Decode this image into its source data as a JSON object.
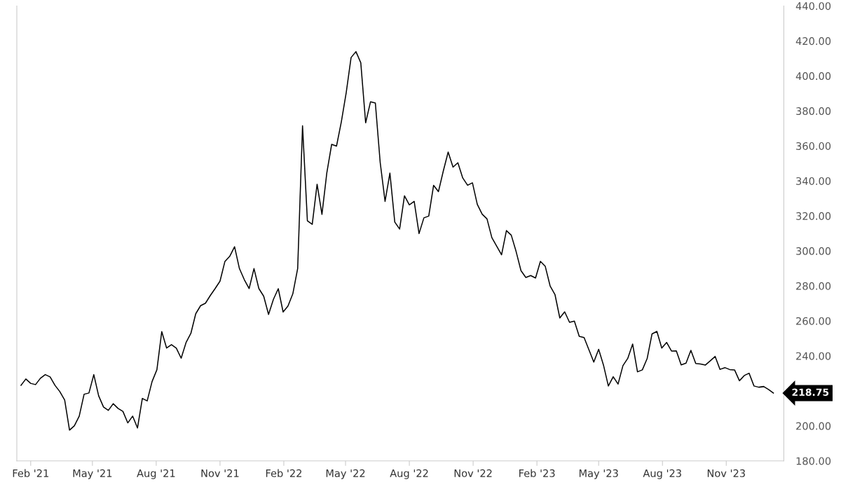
{
  "chart_data": {
    "type": "line",
    "x": [
      "2021-01-18",
      "2021-01-25",
      "2021-02-01",
      "2021-02-08",
      "2021-02-15",
      "2021-02-22",
      "2021-03-01",
      "2021-03-08",
      "2021-03-15",
      "2021-03-22",
      "2021-03-29",
      "2021-04-05",
      "2021-04-12",
      "2021-04-19",
      "2021-04-26",
      "2021-05-03",
      "2021-05-10",
      "2021-05-17",
      "2021-05-24",
      "2021-05-31",
      "2021-06-07",
      "2021-06-14",
      "2021-06-21",
      "2021-06-28",
      "2021-07-05",
      "2021-07-12",
      "2021-07-19",
      "2021-07-26",
      "2021-08-02",
      "2021-08-09",
      "2021-08-16",
      "2021-08-23",
      "2021-08-30",
      "2021-09-06",
      "2021-09-13",
      "2021-09-20",
      "2021-09-27",
      "2021-10-04",
      "2021-10-11",
      "2021-10-18",
      "2021-10-25",
      "2021-11-01",
      "2021-11-08",
      "2021-11-15",
      "2021-11-22",
      "2021-11-29",
      "2021-12-06",
      "2021-12-13",
      "2021-12-20",
      "2021-12-27",
      "2022-01-03",
      "2022-01-10",
      "2022-01-17",
      "2022-01-24",
      "2022-01-31",
      "2022-02-07",
      "2022-02-14",
      "2022-02-21",
      "2022-02-28",
      "2022-03-07",
      "2022-03-14",
      "2022-03-21",
      "2022-03-28",
      "2022-04-04",
      "2022-04-11",
      "2022-04-18",
      "2022-04-25",
      "2022-05-02",
      "2022-05-09",
      "2022-05-16",
      "2022-05-23",
      "2022-05-30",
      "2022-06-06",
      "2022-06-13",
      "2022-06-20",
      "2022-06-27",
      "2022-07-04",
      "2022-07-11",
      "2022-07-18",
      "2022-07-25",
      "2022-08-01",
      "2022-08-08",
      "2022-08-15",
      "2022-08-22",
      "2022-08-29",
      "2022-09-05",
      "2022-09-12",
      "2022-09-19",
      "2022-09-26",
      "2022-10-03",
      "2022-10-10",
      "2022-10-17",
      "2022-10-24",
      "2022-10-31",
      "2022-11-07",
      "2022-11-14",
      "2022-11-21",
      "2022-11-28",
      "2022-12-05",
      "2022-12-12",
      "2022-12-19",
      "2022-12-26",
      "2023-01-02",
      "2023-01-09",
      "2023-01-16",
      "2023-01-23",
      "2023-01-30",
      "2023-02-06",
      "2023-02-13",
      "2023-02-20",
      "2023-02-27",
      "2023-03-06",
      "2023-03-13",
      "2023-03-20",
      "2023-03-27",
      "2023-04-03",
      "2023-04-10",
      "2023-04-17",
      "2023-04-24",
      "2023-05-01",
      "2023-05-08",
      "2023-05-15",
      "2023-05-22",
      "2023-05-29",
      "2023-06-05",
      "2023-06-12",
      "2023-06-19",
      "2023-06-26",
      "2023-07-03",
      "2023-07-10",
      "2023-07-17",
      "2023-07-24",
      "2023-07-31",
      "2023-08-07",
      "2023-08-14",
      "2023-08-21",
      "2023-08-28",
      "2023-09-04",
      "2023-09-11",
      "2023-09-18",
      "2023-09-25",
      "2023-10-02",
      "2023-10-09",
      "2023-10-16",
      "2023-10-23",
      "2023-10-30",
      "2023-11-06",
      "2023-11-13",
      "2023-11-20",
      "2023-11-27",
      "2023-12-04",
      "2023-12-11",
      "2023-12-18",
      "2023-12-25",
      "2024-01-01",
      "2024-01-08"
    ],
    "series": [
      {
        "color": "#000000",
        "values": [
          223.2,
          226.8,
          224.3,
          223.6,
          227.2,
          229.3,
          228,
          223.2,
          219.6,
          214.8,
          197.6,
          200.1,
          205.6,
          218.1,
          218.8,
          229.3,
          217.2,
          210.8,
          208.9,
          212.7,
          210,
          208.3,
          201.7,
          205.6,
          198.8,
          215.7,
          214.3,
          225.3,
          232.1,
          253.9,
          244.5,
          246.4,
          244.4,
          238.7,
          247.6,
          252.9,
          264.1,
          268.7,
          270.1,
          274.5,
          278.5,
          282.7,
          293.9,
          296.9,
          302.4,
          289.9,
          283.6,
          278.5,
          289.9,
          278.5,
          274.1,
          263.7,
          272.3,
          278.4,
          265.1,
          268.5,
          275.5,
          290,
          371.5,
          317.2,
          315.2,
          338.1,
          320.9,
          344.5,
          360.9,
          359.9,
          373.9,
          390.5,
          410.5,
          413.9,
          407.5,
          373.2,
          385.2,
          384.5,
          350.5,
          328.3,
          344.5,
          316.5,
          312.5,
          331.5,
          326.3,
          328.3,
          309.9,
          318.9,
          319.9,
          337.5,
          333.9,
          345.7,
          356.5,
          347.9,
          350.4,
          341.7,
          337.5,
          338.9,
          326.6,
          321,
          318.3,
          307.6,
          302.7,
          297.8,
          311.6,
          309,
          299.6,
          288.7,
          284.8,
          285.9,
          284.5,
          294,
          291.2,
          280,
          275.1,
          261.7,
          265.2,
          259.2,
          259.9,
          251.2,
          250.5,
          243.5,
          236.5,
          243.8,
          234.7,
          222.8,
          228.1,
          223.9,
          234.4,
          238.6,
          246.8,
          230.9,
          232,
          238.6,
          252.6,
          254,
          244.5,
          247.7,
          242.8,
          242.9,
          234.9,
          235.9,
          243.2,
          235.7,
          235.4,
          234.8,
          237.2,
          239.7,
          232.3,
          233.3,
          232.2,
          232,
          225.8,
          228.8,
          230.1,
          222.8,
          222.1,
          222.5,
          220.8,
          218.75
        ]
      }
    ],
    "xlim": [
      "2021-01-12",
      "2024-01-23"
    ],
    "xticks": [
      {
        "value": "2021-02-01",
        "label": "Feb '21"
      },
      {
        "value": "2021-05-01",
        "label": "May '21"
      },
      {
        "value": "2021-08-01",
        "label": "Aug '21"
      },
      {
        "value": "2021-11-01",
        "label": "Nov '21"
      },
      {
        "value": "2022-02-01",
        "label": "Feb '22"
      },
      {
        "value": "2022-05-01",
        "label": "May '22"
      },
      {
        "value": "2022-08-01",
        "label": "Aug '22"
      },
      {
        "value": "2022-11-01",
        "label": "Nov '22"
      },
      {
        "value": "2023-02-01",
        "label": "Feb '23"
      },
      {
        "value": "2023-05-01",
        "label": "May '23"
      },
      {
        "value": "2023-08-01",
        "label": "Aug '23"
      },
      {
        "value": "2023-11-01",
        "label": "Nov '23"
      }
    ],
    "ylim": [
      180,
      440
    ],
    "yticks": [
      {
        "value": 180,
        "label": "180.00"
      },
      {
        "value": 200,
        "label": "200.00"
      },
      {
        "value": 240,
        "label": "240.00"
      },
      {
        "value": 260,
        "label": "260.00"
      },
      {
        "value": 280,
        "label": "280.00"
      },
      {
        "value": 300,
        "label": "300.00"
      },
      {
        "value": 320,
        "label": "320.00"
      },
      {
        "value": 340,
        "label": "340.00"
      },
      {
        "value": 360,
        "label": "360.00"
      },
      {
        "value": 380,
        "label": "380.00"
      },
      {
        "value": 400,
        "label": "400.00"
      },
      {
        "value": 420,
        "label": "420.00"
      },
      {
        "value": 440,
        "label": "440.00"
      }
    ],
    "annotations": [
      "218.75"
    ],
    "grid": false,
    "marker": "none",
    "line_style": "solid"
  }
}
